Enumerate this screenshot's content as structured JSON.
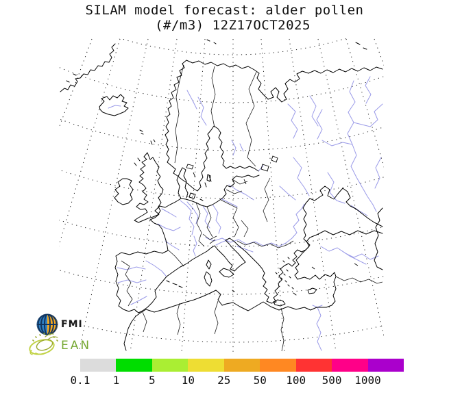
{
  "title": {
    "line1": "SILAM model forecast: alder pollen",
    "line2": "(#/m3) 12Z17OCT2025"
  },
  "legend": {
    "tick_labels": [
      "0.1",
      "1",
      "5",
      "10",
      "25",
      "50",
      "100",
      "500",
      "1000"
    ],
    "segment_colors": [
      "#dcdcdc",
      "#00dd00",
      "#aaee33",
      "#eedd33",
      "#eeaa22",
      "#ff8822",
      "#ff3333",
      "#ff0088",
      "#aa00cc"
    ]
  },
  "branding": {
    "fmi_label": "FMI",
    "ean_label": "EAN",
    "ean_green": "#76a832",
    "fmi_blue": "#2f7fc2",
    "fmi_orange": "#f6a81e",
    "fmi_navy": "#12355f",
    "ean_sketch_olive": "#9aa92e",
    "ean_sketch_yellowgreen": "#c2d348"
  },
  "map": {
    "coastline_color": "#000000",
    "river_color": "#9a9ae8",
    "graticule_color": "#1a1a1a",
    "background": "#ffffff"
  }
}
